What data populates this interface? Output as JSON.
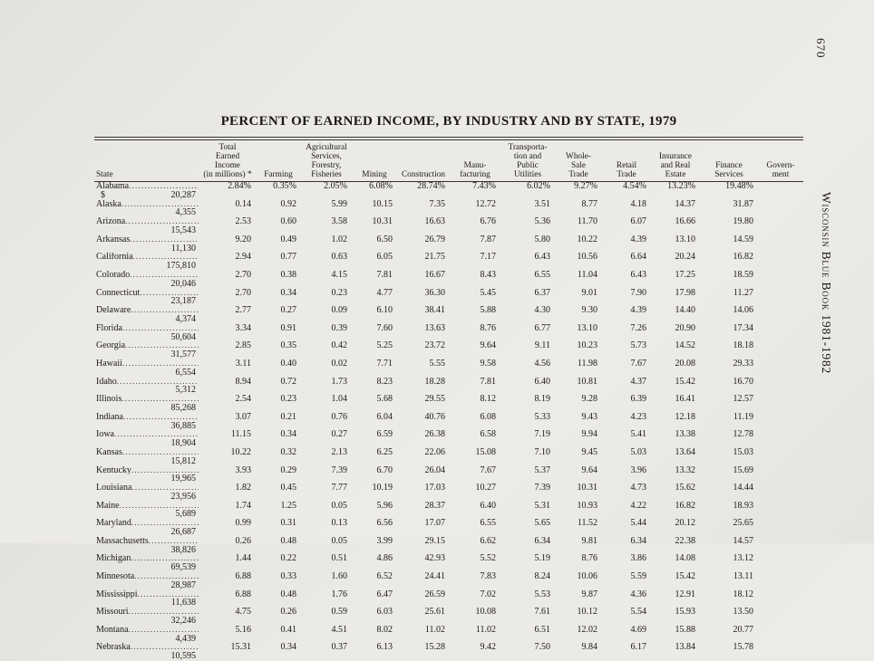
{
  "page": {
    "page_number": "670",
    "side_title": "Wisconsin Blue Book 1981-1982",
    "title": "PERCENT OF EARNED INCOME, BY INDUSTRY AND BY STATE, 1979"
  },
  "table": {
    "columns": [
      {
        "lines": [
          "State"
        ]
      },
      {
        "lines": [
          "Total",
          "Earned",
          "Income",
          "(in millions) *"
        ]
      },
      {
        "lines": [
          "Farming"
        ]
      },
      {
        "lines": [
          "Agricultural",
          "Services,",
          "Forestry,",
          "Fisheries"
        ]
      },
      {
        "lines": [
          "Mining"
        ]
      },
      {
        "lines": [
          "Construction"
        ]
      },
      {
        "lines": [
          "Manu-",
          "facturing"
        ]
      },
      {
        "lines": [
          "Transporta-",
          "tion and",
          "Public",
          "Utilities"
        ]
      },
      {
        "lines": [
          "Whole-",
          "Sale",
          "Trade"
        ]
      },
      {
        "lines": [
          "Retail",
          "Trade"
        ]
      },
      {
        "lines": [
          "Insurance",
          "and Real",
          "Estate"
        ]
      },
      {
        "lines": [
          "Finance",
          "Services"
        ]
      },
      {
        "lines": [
          "Govern-",
          "ment"
        ]
      }
    ],
    "rows": [
      {
        "state": "Alabama",
        "dollar": "$",
        "income": "20,287",
        "values": [
          "2.84%",
          "0.35%",
          "2.05%",
          "6.08%",
          "28.74%",
          "7.43%",
          "6.02%",
          "9.27%",
          "4.54%",
          "13.23%",
          "19.48%"
        ]
      },
      {
        "state": "Alaska",
        "dollar": "",
        "income": "4,355",
        "values": [
          "0.14",
          "0.92",
          "5.99",
          "10.15",
          "7.35",
          "12.72",
          "3.51",
          "8.77",
          "4.18",
          "14.37",
          "31.87"
        ]
      },
      {
        "state": "Arizona",
        "dollar": "",
        "income": "15,543",
        "values": [
          "2.53",
          "0.60",
          "3.58",
          "10.31",
          "16.63",
          "6.76",
          "5.36",
          "11.70",
          "6.07",
          "16.66",
          "19.80"
        ]
      },
      {
        "state": "Arkansas",
        "dollar": "",
        "income": "11,130",
        "values": [
          "9.20",
          "0.49",
          "1.02",
          "6.50",
          "26.79",
          "7.87",
          "5.80",
          "10.22",
          "4.39",
          "13.10",
          "14.59"
        ]
      },
      {
        "state": "California",
        "dollar": "",
        "income": "175,810",
        "values": [
          "2.94",
          "0.77",
          "0.63",
          "6.05",
          "21.75",
          "7.17",
          "6.43",
          "10.56",
          "6.64",
          "20.24",
          "16.82"
        ]
      },
      {
        "state": "Colorado",
        "dollar": "",
        "income": "20,046",
        "values": [
          "2.70",
          "0.38",
          "4.15",
          "7.81",
          "16.67",
          "8.43",
          "6.55",
          "11.04",
          "6.43",
          "17.25",
          "18.59"
        ]
      },
      {
        "state": "Connecticut",
        "dollar": "",
        "income": "23,187",
        "values": [
          "2.70",
          "0.34",
          "0.23",
          "4.77",
          "36.30",
          "5.45",
          "6.37",
          "9.01",
          "7.90",
          "17.98",
          "11.27"
        ]
      },
      {
        "state": "Delaware",
        "dollar": "",
        "income": "4,374",
        "values": [
          "2.77",
          "0.27",
          "0.09",
          "6.10",
          "38.41",
          "5.88",
          "4.30",
          "9.30",
          "4.39",
          "14.40",
          "14.06"
        ]
      },
      {
        "state": "Florida",
        "dollar": "",
        "income": "50,604",
        "values": [
          "3.34",
          "0.91",
          "0.39",
          "7.60",
          "13.63",
          "8.76",
          "6.77",
          "13.10",
          "7.26",
          "20.90",
          "17.34"
        ]
      },
      {
        "state": "Georgia",
        "dollar": "",
        "income": "31,577",
        "values": [
          "2.85",
          "0.35",
          "0.42",
          "5.25",
          "23.72",
          "9.64",
          "9.11",
          "10.23",
          "5.73",
          "14.52",
          "18.18"
        ]
      },
      {
        "state": "Hawaii",
        "dollar": "",
        "income": "6,554",
        "values": [
          "3.11",
          "0.40",
          "0.02",
          "7.71",
          "5.55",
          "9.58",
          "4.56",
          "11.98",
          "7.67",
          "20.08",
          "29.33"
        ]
      },
      {
        "state": "Idaho",
        "dollar": "",
        "income": "5,312",
        "values": [
          "8.94",
          "0.72",
          "1.73",
          "8.23",
          "18.28",
          "7.81",
          "6.40",
          "10.81",
          "4.37",
          "15.42",
          "16.70"
        ]
      },
      {
        "state": "Illinois",
        "dollar": "",
        "income": "85,268",
        "values": [
          "2.54",
          "0.23",
          "1.04",
          "5.68",
          "29.55",
          "8.12",
          "8.19",
          "9.28",
          "6.39",
          "16.41",
          "12.57"
        ]
      },
      {
        "state": "Indiana",
        "dollar": "",
        "income": "36,885",
        "values": [
          "3.07",
          "0.21",
          "0.76",
          "6.04",
          "40.76",
          "6.08",
          "5.33",
          "9.43",
          "4.23",
          "12.18",
          "11.19"
        ]
      },
      {
        "state": "Iowa",
        "dollar": "",
        "income": "18,904",
        "values": [
          "11.15",
          "0.34",
          "0.27",
          "6.59",
          "26.38",
          "6.58",
          "7.19",
          "9.94",
          "5.41",
          "13.38",
          "12.78"
        ]
      },
      {
        "state": "Kansas",
        "dollar": "",
        "income": "15,812",
        "values": [
          "10.22",
          "0.32",
          "2.13",
          "6.25",
          "22.06",
          "15.08",
          "7.10",
          "9.45",
          "5.03",
          "13.64",
          "15.03"
        ]
      },
      {
        "state": "Kentucky",
        "dollar": "",
        "income": "19,965",
        "values": [
          "3.93",
          "0.29",
          "7.39",
          "6.70",
          "26.04",
          "7.67",
          "5.37",
          "9.64",
          "3.96",
          "13.32",
          "15.69"
        ]
      },
      {
        "state": "Louisiana",
        "dollar": "",
        "income": "23,956",
        "values": [
          "1.82",
          "0.45",
          "7.77",
          "10.19",
          "17.03",
          "10.27",
          "7.39",
          "10.31",
          "4.73",
          "15.62",
          "14.44"
        ]
      },
      {
        "state": "Maine",
        "dollar": "",
        "income": "5,689",
        "values": [
          "1.74",
          "1.25",
          "0.05",
          "5.96",
          "28.37",
          "6.40",
          "5.31",
          "10.93",
          "4.22",
          "16.82",
          "18.93"
        ]
      },
      {
        "state": "Maryland",
        "dollar": "",
        "income": "26,687",
        "values": [
          "0.99",
          "0.31",
          "0.13",
          "6.56",
          "17.07",
          "6.55",
          "5.65",
          "11.52",
          "5.44",
          "20.12",
          "25.65"
        ]
      },
      {
        "state": "Massachusetts",
        "dollar": "",
        "income": "38,826",
        "values": [
          "0.26",
          "0.48",
          "0.05",
          "3.99",
          "29.15",
          "6.62",
          "6.34",
          "9.81",
          "6.34",
          "22.38",
          "14.57"
        ]
      },
      {
        "state": "Michigan",
        "dollar": "",
        "income": "69,539",
        "values": [
          "1.44",
          "0.22",
          "0.51",
          "4.86",
          "42.93",
          "5.52",
          "5.19",
          "8.76",
          "3.86",
          "14.08",
          "13.12"
        ]
      },
      {
        "state": "Minnesota",
        "dollar": "",
        "income": "28,987",
        "values": [
          "6.88",
          "0.33",
          "1.60",
          "6.52",
          "24.41",
          "7.83",
          "8.24",
          "10.06",
          "5.59",
          "15.42",
          "13.11"
        ]
      },
      {
        "state": "Mississippi",
        "dollar": "",
        "income": "11,638",
        "values": [
          "6.88",
          "0.48",
          "1.76",
          "6.47",
          "26.59",
          "7.02",
          "5.53",
          "9.87",
          "4.36",
          "12.91",
          "18.12"
        ]
      },
      {
        "state": "Missouri",
        "dollar": "",
        "income": "32,246",
        "values": [
          "4.75",
          "0.26",
          "0.59",
          "6.03",
          "25.61",
          "10.08",
          "7.61",
          "10.12",
          "5.54",
          "15.93",
          "13.50"
        ]
      },
      {
        "state": "Montana",
        "dollar": "",
        "income": "4,439",
        "values": [
          "5.16",
          "0.41",
          "4.51",
          "8.02",
          "11.02",
          "11.02",
          "6.51",
          "12.02",
          "4.69",
          "15.88",
          "20.77"
        ]
      },
      {
        "state": "Nebraska",
        "dollar": "",
        "income": "10,595",
        "values": [
          "15.31",
          "0.34",
          "0.37",
          "6.13",
          "15.28",
          "9.42",
          "7.50",
          "9.84",
          "6.17",
          "13.84",
          "15.78"
        ]
      }
    ]
  }
}
